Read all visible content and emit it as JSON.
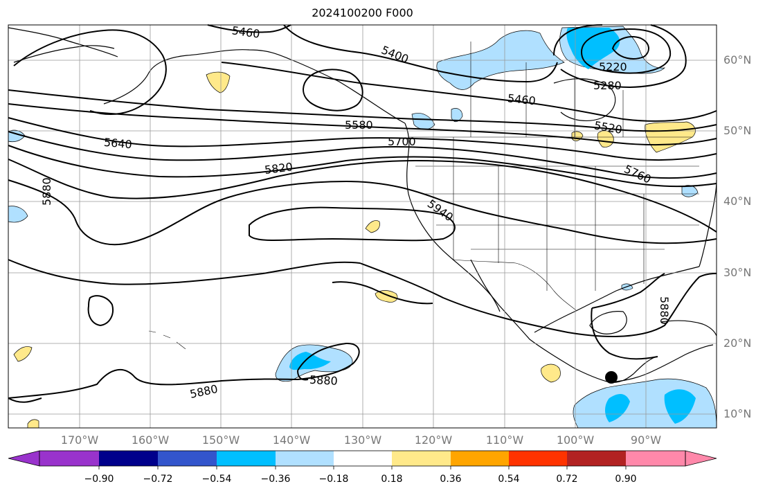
{
  "title": "2024100200 F000",
  "lat_labels": [
    "60°N",
    "50°N",
    "40°N",
    "30°N",
    "20°N",
    "10°N"
  ],
  "lon_labels": [
    "170°W",
    "160°W",
    "150°W",
    "140°W",
    "130°W",
    "120°W",
    "110°W",
    "100°W",
    "90°W"
  ],
  "colorbar": {
    "ticks": [
      "−0.90",
      "−0.72",
      "−0.54",
      "−0.36",
      "−0.18",
      "0.18",
      "0.36",
      "0.54",
      "0.72",
      "0.90"
    ],
    "colors": [
      "#9933cc",
      "#00008b",
      "#3355cc",
      "#00bfff",
      "#b0e0ff",
      "#ffffff",
      "#ffe98a",
      "#ffa500",
      "#ff3300",
      "#b22222",
      "#ff88aa"
    ]
  },
  "contour_labels": [
    "5460",
    "5400",
    "5220",
    "5280",
    "5460",
    "5520",
    "5580",
    "5640",
    "5700",
    "5760",
    "5820",
    "5880",
    "5940",
    "5880",
    "5880",
    "5880"
  ],
  "map": {
    "extent_lon": [
      -180,
      -80
    ],
    "extent_lat": [
      8,
      65
    ],
    "marker_point": {
      "lon": -94.5,
      "lat": 15.2
    },
    "field": "500 hPa geopotential height (m) with shaded anomaly"
  }
}
